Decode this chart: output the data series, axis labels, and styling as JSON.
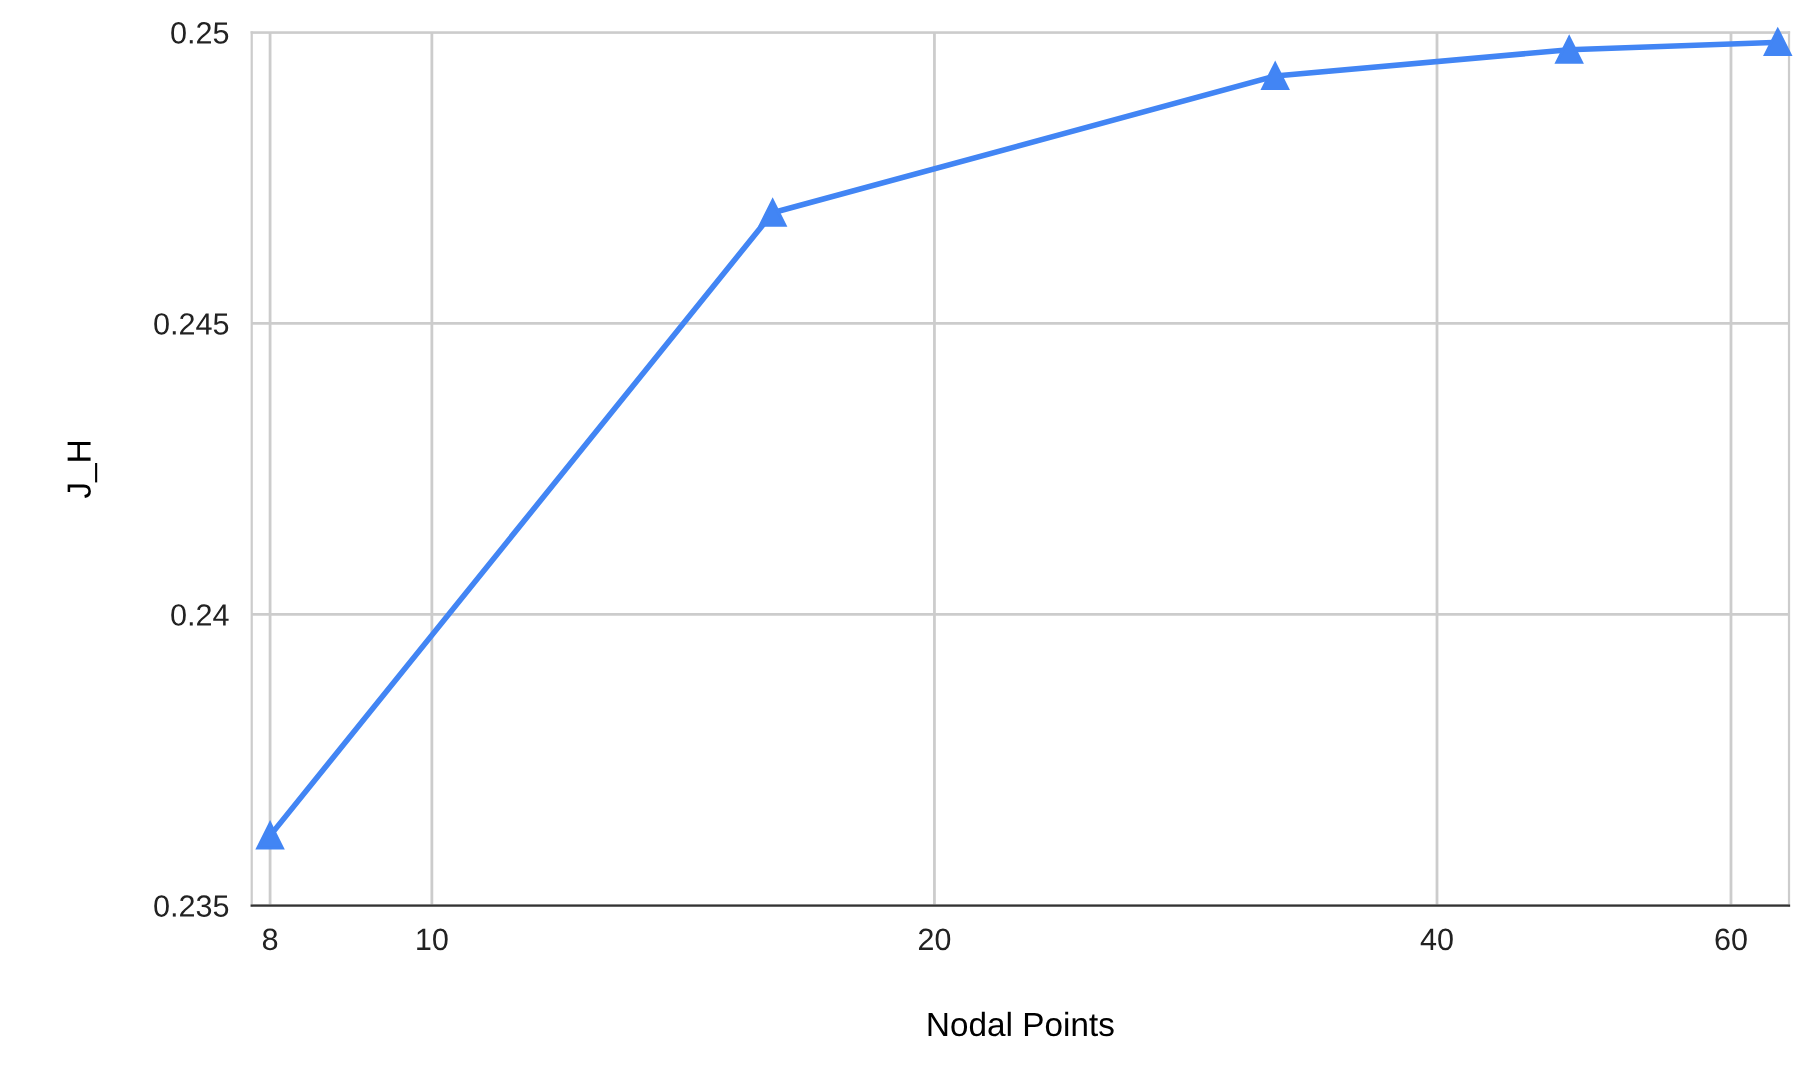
{
  "chart_data": {
    "type": "line",
    "xlabel": "Nodal Points",
    "ylabel": "J_H",
    "x": [
      8,
      16,
      32,
      48,
      64
    ],
    "series": [
      {
        "color": "#4285f4",
        "values": [
          0.2362,
          0.2469,
          0.24925,
          0.2497,
          0.24983
        ]
      }
    ],
    "log": "x",
    "xlim": [
      7.8,
      65
    ],
    "xticks": [
      8,
      10,
      20,
      40,
      60
    ],
    "ylim": [
      0.235,
      0.25
    ],
    "yticks": [
      0.235,
      0.24,
      0.245,
      0.25
    ],
    "grid": true,
    "marker": "triangle",
    "line_style": "solid"
  }
}
